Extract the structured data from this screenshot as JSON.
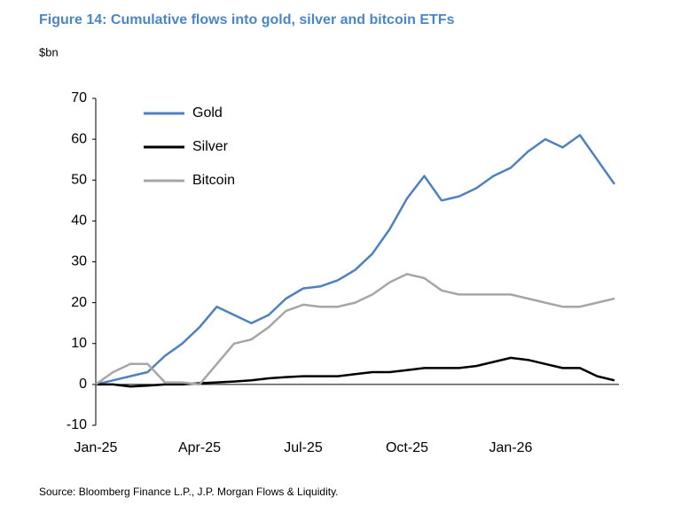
{
  "chart_data": {
    "type": "line",
    "title": "Figure 14: Cumulative flows into gold, silver and bitcoin ETFs",
    "y_label": "$bn",
    "source": "Source: Bloomberg Finance L.P., J.P. Morgan Flows & Liquidity.",
    "categories": [
      "Jan-25",
      null,
      null,
      null,
      null,
      null,
      "Apr-25",
      null,
      null,
      null,
      null,
      null,
      "Jul-25",
      null,
      null,
      null,
      null,
      null,
      "Oct-25",
      null,
      null,
      null,
      null,
      null,
      "Jan-26",
      null,
      null,
      null,
      null,
      null,
      null
    ],
    "series": [
      {
        "name": "Gold",
        "color": "#4f81bd",
        "values": [
          0,
          1,
          2,
          3,
          7,
          10,
          14,
          19,
          17,
          15,
          17,
          21,
          23.5,
          24,
          25.5,
          28,
          32,
          38,
          45.5,
          51,
          45,
          46,
          48,
          51,
          53,
          57,
          60,
          58,
          61,
          55,
          49
        ]
      },
      {
        "name": "Silver",
        "color": "#000000",
        "values": [
          0,
          0,
          -0.5,
          -0.3,
          0,
          0,
          0.3,
          0.5,
          0.7,
          1,
          1.5,
          1.8,
          2,
          2,
          2,
          2.5,
          3,
          3,
          3.5,
          4,
          4,
          4,
          4.5,
          5.5,
          6.5,
          6,
          5,
          4,
          4,
          2,
          1
        ]
      },
      {
        "name": "Bitcoin",
        "color": "#a6a6a6",
        "values": [
          0,
          3,
          5,
          5,
          0.5,
          0.5,
          0,
          5,
          10,
          11,
          14,
          18,
          19.5,
          19,
          19,
          20,
          22,
          25,
          27,
          26,
          23,
          22,
          22,
          22,
          22,
          21,
          20,
          19,
          19,
          20,
          21
        ]
      }
    ],
    "ylim": [
      -10,
      70
    ],
    "yticks": [
      -10,
      0,
      10,
      20,
      30,
      40,
      50,
      60,
      70
    ]
  }
}
